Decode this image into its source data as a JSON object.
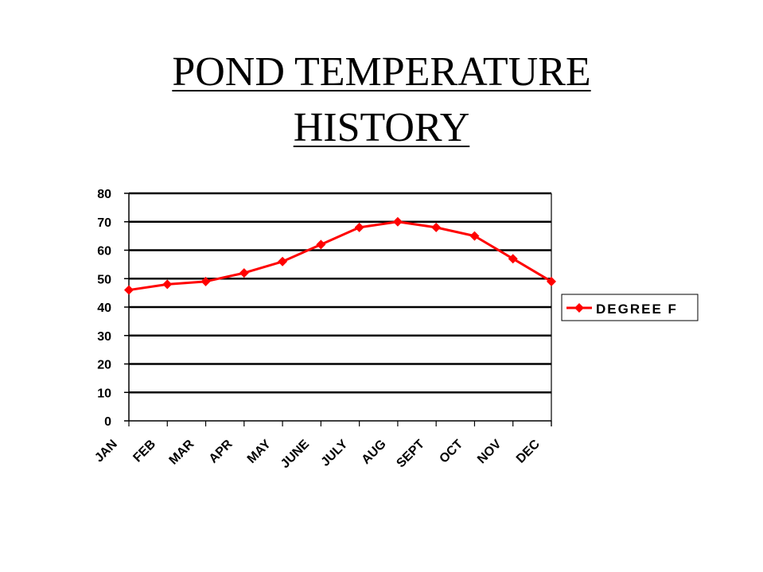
{
  "title": {
    "line1": "POND TEMPERATURE",
    "line2": "HISTORY"
  },
  "chart_data": {
    "type": "line",
    "title": "POND TEMPERATURE HISTORY",
    "xlabel": "",
    "ylabel": "",
    "categories": [
      "JAN",
      "FEB",
      "MAR",
      "APR",
      "MAY",
      "JUNE",
      "JULY",
      "AUG",
      "SEPT",
      "OCT",
      "NOV",
      "DEC"
    ],
    "series": [
      {
        "name": "DEGREE F",
        "values": [
          46,
          48,
          49,
          52,
          56,
          62,
          68,
          70,
          68,
          65,
          57,
          49
        ]
      }
    ],
    "ylim": [
      0,
      80
    ],
    "yticks": [
      "0",
      "10",
      "20",
      "30",
      "40",
      "50",
      "60",
      "70",
      "80"
    ],
    "grid": "horizontal",
    "legend_position": "right",
    "series_color": "#ff0000",
    "marker": "diamond"
  }
}
